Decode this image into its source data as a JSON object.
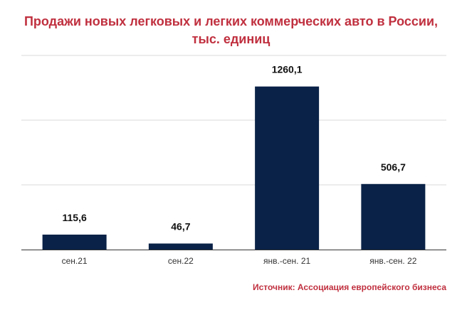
{
  "chart_data": {
    "type": "bar",
    "title_line1": "Продажи новых легковых и легких коммерческих авто в России,",
    "title_line2": "тыс. единиц",
    "categories": [
      "сен.21",
      "сен.22",
      "янв.-сен. 21",
      "янв.-сен. 22"
    ],
    "values": [
      115.6,
      46.7,
      1260.1,
      506.7
    ],
    "value_labels": [
      "115,6",
      "46,7",
      "1260,1",
      "506,7"
    ],
    "ylim": [
      0,
      1500
    ],
    "grid": true,
    "bar_color": "#0a2247",
    "source": "Источник: Ассоциация европейского бизнеса"
  },
  "colors": {
    "title": "#c0303f",
    "grid": "#d9d9d9",
    "axis": "#333333"
  }
}
